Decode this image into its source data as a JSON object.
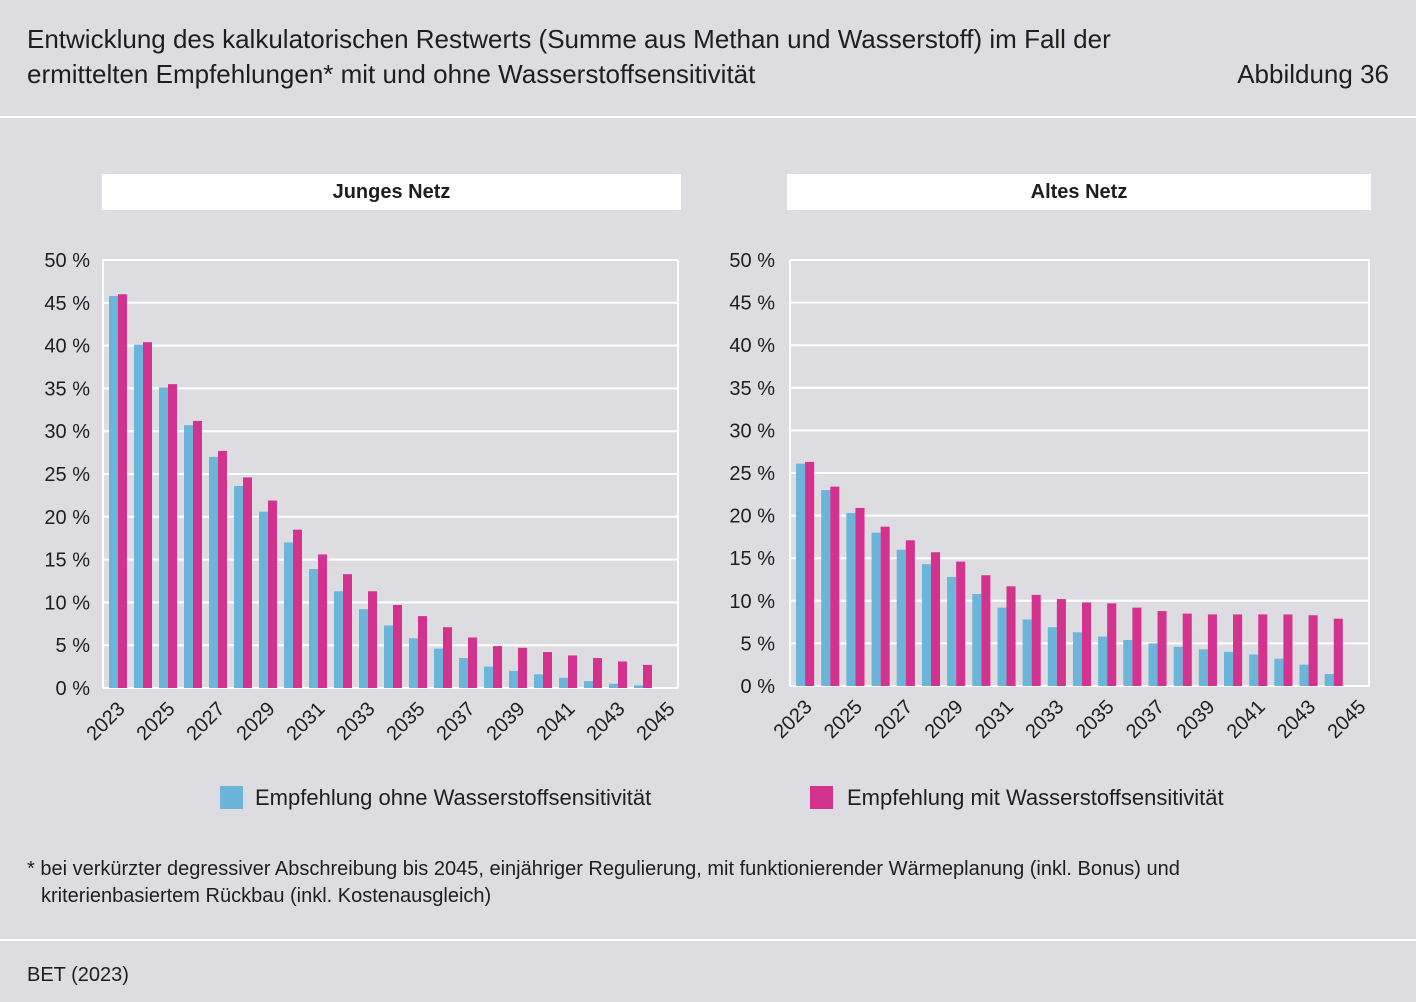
{
  "header": {
    "title_line1": "Entwicklung des kalkulatorischen Restwerts (Summe aus Methan und Wasserstoff) im Fall der",
    "title_line2": "ermittelten Empfehlungen* mit und ohne Wasserstoffsensitivität",
    "figure_label": "Abbildung 36"
  },
  "chart_data": {
    "type": "bar",
    "xlabel": "",
    "ylabel": "",
    "grid": true,
    "legend_position": "bottom",
    "ylim": [
      0,
      50
    ],
    "y_tick_step": 5,
    "y_ticks": [
      "0 %",
      "5 %",
      "10 %",
      "15 %",
      "20 %",
      "25 %",
      "30 %",
      "35 %",
      "40 %",
      "45 %",
      "50 %"
    ],
    "x_tick_step": 2,
    "categories": [
      2023,
      2024,
      2025,
      2026,
      2027,
      2028,
      2029,
      2030,
      2031,
      2032,
      2033,
      2034,
      2035,
      2036,
      2037,
      2038,
      2039,
      2040,
      2041,
      2042,
      2043,
      2044,
      2045
    ],
    "series": [
      {
        "name": "Empfehlung ohne Wasserstoffsensitivität",
        "color": "#6bb4da"
      },
      {
        "name": "Empfehlung mit Wasserstoffsensitivität",
        "color": "#d3328f"
      }
    ],
    "panels": [
      {
        "title": "Junges Netz",
        "values": [
          [
            45.8,
            40.1,
            35.1,
            30.7,
            27.0,
            23.6,
            20.6,
            17.0,
            13.9,
            11.3,
            9.2,
            7.3,
            5.8,
            4.6,
            3.5,
            2.5,
            2.0,
            1.6,
            1.2,
            0.8,
            0.5,
            0.3,
            0
          ],
          [
            46.0,
            40.4,
            35.5,
            31.2,
            27.7,
            24.6,
            21.9,
            18.5,
            15.6,
            13.3,
            11.3,
            9.7,
            8.4,
            7.1,
            5.9,
            4.9,
            4.7,
            4.2,
            3.8,
            3.5,
            3.1,
            2.7,
            0
          ]
        ]
      },
      {
        "title": "Altes Netz",
        "values": [
          [
            26.1,
            23.0,
            20.3,
            18.0,
            16.0,
            14.3,
            12.8,
            10.8,
            9.2,
            7.8,
            6.9,
            6.3,
            5.8,
            5.4,
            5.0,
            4.6,
            4.3,
            4.0,
            3.7,
            3.2,
            2.5,
            1.4,
            0
          ],
          [
            26.3,
            23.4,
            20.9,
            18.7,
            17.1,
            15.7,
            14.6,
            13.0,
            11.7,
            10.7,
            10.2,
            9.8,
            9.7,
            9.2,
            8.8,
            8.5,
            8.4,
            8.4,
            8.4,
            8.4,
            8.3,
            7.9,
            0
          ]
        ]
      }
    ]
  },
  "footnote": {
    "line1": "* bei verkürzter degressiver Abschreibung bis 2045, einjähriger Regulierung, mit funktionierender Wärmeplanung (inkl. Bonus) und",
    "line2": "kriterienbasiertem Rückbau (inkl. Kostenausgleich)"
  },
  "source": "BET (2023)"
}
